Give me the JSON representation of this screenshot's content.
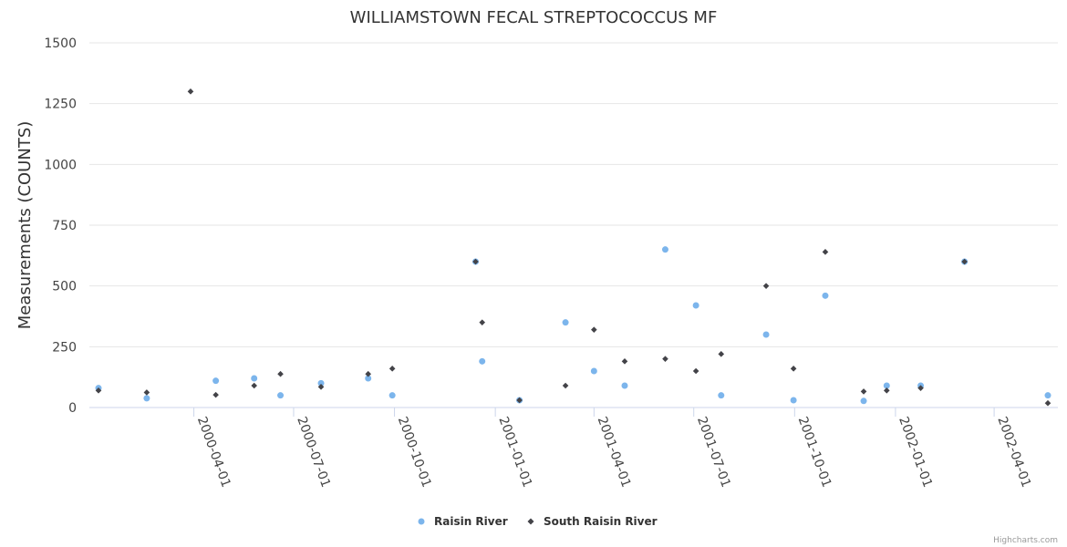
{
  "chart_data": {
    "type": "scatter",
    "title": "WILLIAMSTOWN FECAL STREPTOCOCCUS MF",
    "xlabel": "",
    "ylabel": "Measurements (COUNTS)",
    "xlim": [
      "2000-01-05",
      "2002-05-20"
    ],
    "ylim": [
      0,
      1500
    ],
    "yticks": [
      0,
      250,
      500,
      750,
      1000,
      1250,
      1500
    ],
    "xticks": [
      "2000-04-01",
      "2000-07-01",
      "2000-10-01",
      "2001-01-01",
      "2001-04-01",
      "2001-07-01",
      "2001-10-01",
      "2002-01-01",
      "2002-04-01"
    ],
    "grid": true,
    "legend_position": "bottom-center",
    "series": [
      {
        "name": "Raisin River",
        "marker": "circle",
        "color": "#7cb5ec",
        "points": [
          [
            "2000-01-05",
            80
          ],
          [
            "2000-02-18",
            38
          ],
          [
            "2000-04-21",
            110
          ],
          [
            "2000-05-26",
            120
          ],
          [
            "2000-06-19",
            50
          ],
          [
            "2000-07-26",
            100
          ],
          [
            "2000-09-07",
            120
          ],
          [
            "2000-09-29",
            50
          ],
          [
            "2000-12-14",
            600
          ],
          [
            "2000-12-20",
            190
          ],
          [
            "2001-01-23",
            30
          ],
          [
            "2001-03-06",
            350
          ],
          [
            "2001-04-01",
            150
          ],
          [
            "2001-04-29",
            90
          ],
          [
            "2001-06-05",
            650
          ],
          [
            "2001-07-03",
            420
          ],
          [
            "2001-07-26",
            50
          ],
          [
            "2001-09-05",
            300
          ],
          [
            "2001-09-30",
            30
          ],
          [
            "2001-10-29",
            460
          ],
          [
            "2001-12-03",
            27
          ],
          [
            "2001-12-24",
            90
          ],
          [
            "2002-01-24",
            90
          ],
          [
            "2002-03-05",
            600
          ],
          [
            "2002-05-20",
            50
          ]
        ]
      },
      {
        "name": "South Raisin River",
        "marker": "diamond",
        "color": "#434348",
        "points": [
          [
            "2000-01-05",
            70
          ],
          [
            "2000-02-18",
            62
          ],
          [
            "2000-03-29",
            1300
          ],
          [
            "2000-04-21",
            52
          ],
          [
            "2000-05-26",
            90
          ],
          [
            "2000-06-19",
            138
          ],
          [
            "2000-07-26",
            85
          ],
          [
            "2000-09-07",
            138
          ],
          [
            "2000-09-29",
            160
          ],
          [
            "2000-12-14",
            600
          ],
          [
            "2000-12-20",
            350
          ],
          [
            "2001-01-23",
            30
          ],
          [
            "2001-03-06",
            90
          ],
          [
            "2001-04-01",
            320
          ],
          [
            "2001-04-29",
            190
          ],
          [
            "2001-06-05",
            200
          ],
          [
            "2001-07-03",
            150
          ],
          [
            "2001-07-26",
            220
          ],
          [
            "2001-09-05",
            500
          ],
          [
            "2001-09-30",
            160
          ],
          [
            "2001-10-29",
            640
          ],
          [
            "2001-12-03",
            66
          ],
          [
            "2001-12-24",
            70
          ],
          [
            "2002-01-24",
            80
          ],
          [
            "2002-03-05",
            600
          ],
          [
            "2002-05-20",
            18
          ]
        ]
      }
    ]
  },
  "credits": "Highcharts.com"
}
